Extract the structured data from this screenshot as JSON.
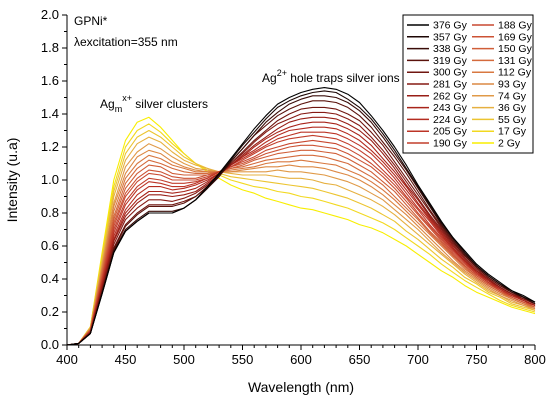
{
  "chart_data": {
    "type": "line",
    "xlabel": "Wavelength (nm)",
    "ylabel": "Intensity (u.a)",
    "xlim": [
      400,
      800
    ],
    "ylim": [
      0.0,
      2.0
    ],
    "x_ticks": [
      400,
      450,
      500,
      550,
      600,
      650,
      700,
      750,
      800
    ],
    "y_ticks": [
      0.0,
      0.2,
      0.4,
      0.6,
      0.8,
      1.0,
      1.2,
      1.4,
      1.6,
      1.8,
      2.0
    ],
    "x_tick_labels": [
      "400",
      "450",
      "500",
      "550",
      "600",
      "650",
      "700",
      "750",
      "800"
    ],
    "y_tick_labels": [
      "0.0",
      "0.2",
      "0.4",
      "0.6",
      "0.8",
      "1.0",
      "1.2",
      "1.4",
      "1.6",
      "1.8",
      "2.0"
    ],
    "grid": false,
    "legend_position": "top-right",
    "annotations": {
      "sample": "GPNi*",
      "excitation": "λexcitation=355 nm",
      "cluster_main": "Ag",
      "cluster_sub": "m",
      "cluster_sup": "x+",
      "cluster_rest": " silver clusters",
      "hole_main": "Ag",
      "hole_sup": "2+",
      "hole_rest": " hole traps silver ions"
    },
    "x": [
      400,
      410,
      420,
      430,
      440,
      450,
      460,
      470,
      480,
      490,
      500,
      510,
      520,
      530,
      540,
      550,
      560,
      570,
      580,
      590,
      600,
      610,
      620,
      630,
      640,
      650,
      660,
      670,
      680,
      690,
      700,
      710,
      720,
      730,
      740,
      750,
      760,
      770,
      780,
      790,
      800
    ],
    "series": [
      {
        "name": "376 Gy",
        "color": "#000000",
        "values": [
          0.0,
          0.01,
          0.07,
          0.31,
          0.56,
          0.69,
          0.75,
          0.8,
          0.8,
          0.8,
          0.83,
          0.88,
          0.96,
          1.04,
          1.13,
          1.22,
          1.31,
          1.39,
          1.46,
          1.5,
          1.53,
          1.55,
          1.56,
          1.55,
          1.52,
          1.47,
          1.39,
          1.3,
          1.2,
          1.09,
          0.97,
          0.86,
          0.75,
          0.65,
          0.57,
          0.49,
          0.43,
          0.38,
          0.33,
          0.3,
          0.26
        ]
      },
      {
        "name": "357 Gy",
        "color": "#1c0604",
        "values": [
          0.0,
          0.01,
          0.07,
          0.31,
          0.56,
          0.69,
          0.75,
          0.8,
          0.8,
          0.8,
          0.83,
          0.88,
          0.95,
          1.03,
          1.12,
          1.21,
          1.29,
          1.37,
          1.44,
          1.48,
          1.51,
          1.53,
          1.54,
          1.53,
          1.49,
          1.44,
          1.37,
          1.28,
          1.18,
          1.07,
          0.96,
          0.85,
          0.74,
          0.65,
          0.56,
          0.48,
          0.42,
          0.37,
          0.33,
          0.29,
          0.26
        ]
      },
      {
        "name": "338 Gy",
        "color": "#3a0c08",
        "values": [
          0.0,
          0.01,
          0.07,
          0.32,
          0.57,
          0.7,
          0.76,
          0.81,
          0.81,
          0.81,
          0.83,
          0.88,
          0.95,
          1.02,
          1.11,
          1.19,
          1.27,
          1.35,
          1.41,
          1.46,
          1.49,
          1.51,
          1.51,
          1.5,
          1.47,
          1.42,
          1.35,
          1.26,
          1.16,
          1.06,
          0.95,
          0.84,
          0.73,
          0.64,
          0.55,
          0.48,
          0.42,
          0.37,
          0.32,
          0.29,
          0.25
        ]
      },
      {
        "name": "319 Gy",
        "color": "#5a120c",
        "values": [
          0.0,
          0.01,
          0.07,
          0.32,
          0.58,
          0.72,
          0.79,
          0.84,
          0.84,
          0.84,
          0.86,
          0.9,
          0.96,
          1.04,
          1.11,
          1.19,
          1.27,
          1.33,
          1.39,
          1.43,
          1.46,
          1.48,
          1.48,
          1.47,
          1.44,
          1.39,
          1.32,
          1.23,
          1.14,
          1.04,
          0.93,
          0.82,
          0.72,
          0.63,
          0.54,
          0.47,
          0.41,
          0.36,
          0.32,
          0.29,
          0.25
        ]
      },
      {
        "name": "300 Gy",
        "color": "#701610",
        "values": [
          0.0,
          0.01,
          0.07,
          0.33,
          0.59,
          0.73,
          0.8,
          0.85,
          0.85,
          0.85,
          0.87,
          0.9,
          0.96,
          1.03,
          1.1,
          1.17,
          1.24,
          1.3,
          1.36,
          1.4,
          1.43,
          1.44,
          1.44,
          1.43,
          1.4,
          1.36,
          1.29,
          1.21,
          1.11,
          1.01,
          0.91,
          0.81,
          0.71,
          0.62,
          0.54,
          0.47,
          0.41,
          0.36,
          0.32,
          0.28,
          0.25
        ]
      },
      {
        "name": "281 Gy",
        "color": "#861a14",
        "values": [
          0.0,
          0.01,
          0.07,
          0.34,
          0.61,
          0.76,
          0.83,
          0.88,
          0.88,
          0.87,
          0.89,
          0.92,
          0.97,
          1.03,
          1.1,
          1.16,
          1.23,
          1.29,
          1.34,
          1.37,
          1.4,
          1.41,
          1.41,
          1.4,
          1.37,
          1.33,
          1.26,
          1.18,
          1.09,
          0.99,
          0.89,
          0.79,
          0.7,
          0.61,
          0.53,
          0.46,
          0.4,
          0.35,
          0.31,
          0.28,
          0.25
        ]
      },
      {
        "name": "262 Gy",
        "color": "#981e16",
        "values": [
          0.0,
          0.01,
          0.08,
          0.35,
          0.63,
          0.78,
          0.86,
          0.91,
          0.91,
          0.9,
          0.91,
          0.93,
          0.98,
          1.03,
          1.09,
          1.15,
          1.21,
          1.26,
          1.31,
          1.35,
          1.37,
          1.38,
          1.38,
          1.37,
          1.34,
          1.3,
          1.24,
          1.16,
          1.07,
          0.97,
          0.88,
          0.78,
          0.69,
          0.6,
          0.52,
          0.45,
          0.4,
          0.35,
          0.31,
          0.28,
          0.25
        ]
      },
      {
        "name": "243 Gy",
        "color": "#a8241a",
        "values": [
          0.0,
          0.01,
          0.08,
          0.36,
          0.64,
          0.8,
          0.88,
          0.93,
          0.93,
          0.92,
          0.93,
          0.95,
          0.99,
          1.04,
          1.09,
          1.14,
          1.2,
          1.25,
          1.29,
          1.32,
          1.34,
          1.35,
          1.35,
          1.34,
          1.31,
          1.27,
          1.21,
          1.13,
          1.05,
          0.96,
          0.86,
          0.77,
          0.68,
          0.59,
          0.51,
          0.45,
          0.39,
          0.35,
          0.31,
          0.27,
          0.24
        ]
      },
      {
        "name": "224 Gy",
        "color": "#b42c20",
        "values": [
          0.0,
          0.01,
          0.08,
          0.37,
          0.66,
          0.82,
          0.91,
          0.96,
          0.96,
          0.94,
          0.95,
          0.97,
          1.0,
          1.04,
          1.09,
          1.14,
          1.18,
          1.23,
          1.27,
          1.3,
          1.31,
          1.32,
          1.32,
          1.31,
          1.28,
          1.24,
          1.18,
          1.11,
          1.03,
          0.94,
          0.85,
          0.76,
          0.67,
          0.58,
          0.51,
          0.44,
          0.39,
          0.34,
          0.3,
          0.27,
          0.24
        ]
      },
      {
        "name": "205 Gy",
        "color": "#bc3426",
        "values": [
          0.0,
          0.01,
          0.08,
          0.38,
          0.68,
          0.85,
          0.94,
          0.99,
          0.98,
          0.96,
          0.96,
          0.98,
          1.01,
          1.05,
          1.09,
          1.13,
          1.17,
          1.21,
          1.25,
          1.27,
          1.29,
          1.29,
          1.29,
          1.28,
          1.25,
          1.21,
          1.16,
          1.09,
          1.01,
          0.92,
          0.83,
          0.75,
          0.66,
          0.58,
          0.5,
          0.44,
          0.38,
          0.34,
          0.3,
          0.27,
          0.24
        ]
      },
      {
        "name": "190 Gy",
        "color": "#c23e2c",
        "values": [
          0.0,
          0.01,
          0.08,
          0.39,
          0.7,
          0.87,
          0.96,
          1.01,
          1.0,
          0.98,
          0.98,
          0.99,
          1.01,
          1.05,
          1.08,
          1.12,
          1.16,
          1.2,
          1.23,
          1.25,
          1.26,
          1.27,
          1.26,
          1.25,
          1.22,
          1.18,
          1.13,
          1.06,
          0.99,
          0.9,
          0.82,
          0.73,
          0.65,
          0.57,
          0.5,
          0.43,
          0.38,
          0.34,
          0.3,
          0.27,
          0.24
        ]
      },
      {
        "name": "188 Gy",
        "color": "#c84830",
        "values": [
          0.0,
          0.01,
          0.09,
          0.4,
          0.72,
          0.9,
          0.99,
          1.04,
          1.03,
          1.0,
          1.0,
          1.0,
          1.02,
          1.05,
          1.08,
          1.11,
          1.14,
          1.18,
          1.2,
          1.22,
          1.23,
          1.24,
          1.23,
          1.22,
          1.19,
          1.15,
          1.1,
          1.04,
          0.97,
          0.89,
          0.8,
          0.72,
          0.64,
          0.56,
          0.49,
          0.43,
          0.38,
          0.33,
          0.3,
          0.27,
          0.24
        ]
      },
      {
        "name": "169 Gy",
        "color": "#cc5234",
        "values": [
          0.0,
          0.01,
          0.09,
          0.41,
          0.74,
          0.92,
          1.01,
          1.06,
          1.05,
          1.02,
          1.01,
          1.01,
          1.03,
          1.05,
          1.08,
          1.1,
          1.13,
          1.16,
          1.18,
          1.2,
          1.21,
          1.21,
          1.2,
          1.19,
          1.16,
          1.12,
          1.08,
          1.02,
          0.95,
          0.87,
          0.79,
          0.71,
          0.63,
          0.55,
          0.48,
          0.42,
          0.37,
          0.33,
          0.29,
          0.26,
          0.24
        ]
      },
      {
        "name": "150 Gy",
        "color": "#d05e38",
        "values": [
          0.0,
          0.01,
          0.09,
          0.42,
          0.76,
          0.95,
          1.04,
          1.09,
          1.08,
          1.04,
          1.03,
          1.03,
          1.03,
          1.05,
          1.07,
          1.09,
          1.12,
          1.14,
          1.16,
          1.17,
          1.18,
          1.18,
          1.17,
          1.16,
          1.13,
          1.09,
          1.05,
          0.99,
          0.93,
          0.85,
          0.77,
          0.69,
          0.62,
          0.54,
          0.48,
          0.42,
          0.37,
          0.33,
          0.29,
          0.26,
          0.23
        ]
      },
      {
        "name": "131 Gy",
        "color": "#d46a3c",
        "values": [
          0.0,
          0.01,
          0.09,
          0.44,
          0.78,
          0.98,
          1.07,
          1.12,
          1.1,
          1.07,
          1.05,
          1.04,
          1.04,
          1.05,
          1.07,
          1.08,
          1.1,
          1.12,
          1.13,
          1.14,
          1.15,
          1.15,
          1.14,
          1.12,
          1.1,
          1.06,
          1.02,
          0.97,
          0.9,
          0.83,
          0.76,
          0.68,
          0.61,
          0.54,
          0.47,
          0.41,
          0.36,
          0.32,
          0.29,
          0.26,
          0.23
        ]
      },
      {
        "name": "112 Gy",
        "color": "#d87840",
        "values": [
          0.0,
          0.01,
          0.09,
          0.45,
          0.81,
          1.01,
          1.1,
          1.15,
          1.13,
          1.09,
          1.07,
          1.05,
          1.05,
          1.05,
          1.06,
          1.07,
          1.08,
          1.1,
          1.11,
          1.11,
          1.12,
          1.11,
          1.1,
          1.09,
          1.06,
          1.03,
          0.99,
          0.94,
          0.88,
          0.81,
          0.74,
          0.67,
          0.6,
          0.53,
          0.46,
          0.41,
          0.36,
          0.32,
          0.28,
          0.25,
          0.23
        ]
      },
      {
        "name": "93 Gy",
        "color": "#dc8844",
        "values": [
          0.0,
          0.01,
          0.1,
          0.47,
          0.84,
          1.04,
          1.14,
          1.18,
          1.16,
          1.11,
          1.08,
          1.06,
          1.05,
          1.05,
          1.05,
          1.06,
          1.07,
          1.08,
          1.08,
          1.09,
          1.08,
          1.08,
          1.07,
          1.05,
          1.03,
          1.0,
          0.96,
          0.91,
          0.85,
          0.79,
          0.72,
          0.65,
          0.58,
          0.51,
          0.45,
          0.4,
          0.35,
          0.31,
          0.28,
          0.25,
          0.22
        ]
      },
      {
        "name": "74 Gy",
        "color": "#e09a48",
        "values": [
          0.0,
          0.01,
          0.1,
          0.48,
          0.86,
          1.08,
          1.17,
          1.22,
          1.19,
          1.14,
          1.1,
          1.07,
          1.06,
          1.05,
          1.05,
          1.05,
          1.05,
          1.05,
          1.06,
          1.05,
          1.05,
          1.04,
          1.03,
          1.01,
          0.99,
          0.96,
          0.92,
          0.88,
          0.82,
          0.76,
          0.7,
          0.63,
          0.56,
          0.5,
          0.44,
          0.39,
          0.34,
          0.3,
          0.27,
          0.24,
          0.22
        ]
      },
      {
        "name": "36 Gy",
        "color": "#e6b040",
        "values": [
          0.0,
          0.01,
          0.1,
          0.5,
          0.9,
          1.12,
          1.22,
          1.26,
          1.23,
          1.17,
          1.12,
          1.09,
          1.07,
          1.05,
          1.04,
          1.03,
          1.03,
          1.03,
          1.02,
          1.01,
          1.01,
          1.0,
          0.98,
          0.97,
          0.94,
          0.91,
          0.88,
          0.84,
          0.79,
          0.73,
          0.67,
          0.61,
          0.55,
          0.49,
          0.43,
          0.38,
          0.33,
          0.3,
          0.26,
          0.24,
          0.21
        ]
      },
      {
        "name": "55 Gy",
        "color": "#ecc430",
        "values": [
          0.0,
          0.01,
          0.11,
          0.52,
          0.93,
          1.16,
          1.26,
          1.3,
          1.26,
          1.2,
          1.14,
          1.1,
          1.07,
          1.04,
          1.02,
          1.01,
          1.0,
          0.99,
          0.98,
          0.97,
          0.96,
          0.95,
          0.93,
          0.91,
          0.89,
          0.86,
          0.83,
          0.79,
          0.75,
          0.69,
          0.64,
          0.58,
          0.52,
          0.47,
          0.41,
          0.37,
          0.32,
          0.29,
          0.25,
          0.23,
          0.21
        ]
      },
      {
        "name": "17 Gy",
        "color": "#f2d820",
        "values": [
          0.0,
          0.01,
          0.11,
          0.54,
          0.96,
          1.2,
          1.3,
          1.34,
          1.29,
          1.22,
          1.16,
          1.1,
          1.06,
          1.03,
          1.0,
          0.98,
          0.96,
          0.95,
          0.93,
          0.92,
          0.9,
          0.89,
          0.87,
          0.85,
          0.83,
          0.8,
          0.77,
          0.74,
          0.7,
          0.65,
          0.6,
          0.55,
          0.49,
          0.44,
          0.39,
          0.35,
          0.31,
          0.27,
          0.24,
          0.22,
          0.2
        ]
      },
      {
        "name": "2 Gy",
        "color": "#f8ee00",
        "values": [
          0.0,
          0.01,
          0.11,
          0.56,
          1.0,
          1.24,
          1.35,
          1.38,
          1.32,
          1.24,
          1.16,
          1.1,
          1.05,
          1.01,
          0.97,
          0.94,
          0.92,
          0.89,
          0.87,
          0.85,
          0.83,
          0.82,
          0.8,
          0.78,
          0.76,
          0.73,
          0.71,
          0.68,
          0.64,
          0.6,
          0.55,
          0.5,
          0.45,
          0.41,
          0.36,
          0.32,
          0.29,
          0.26,
          0.23,
          0.21,
          0.19
        ]
      }
    ]
  }
}
